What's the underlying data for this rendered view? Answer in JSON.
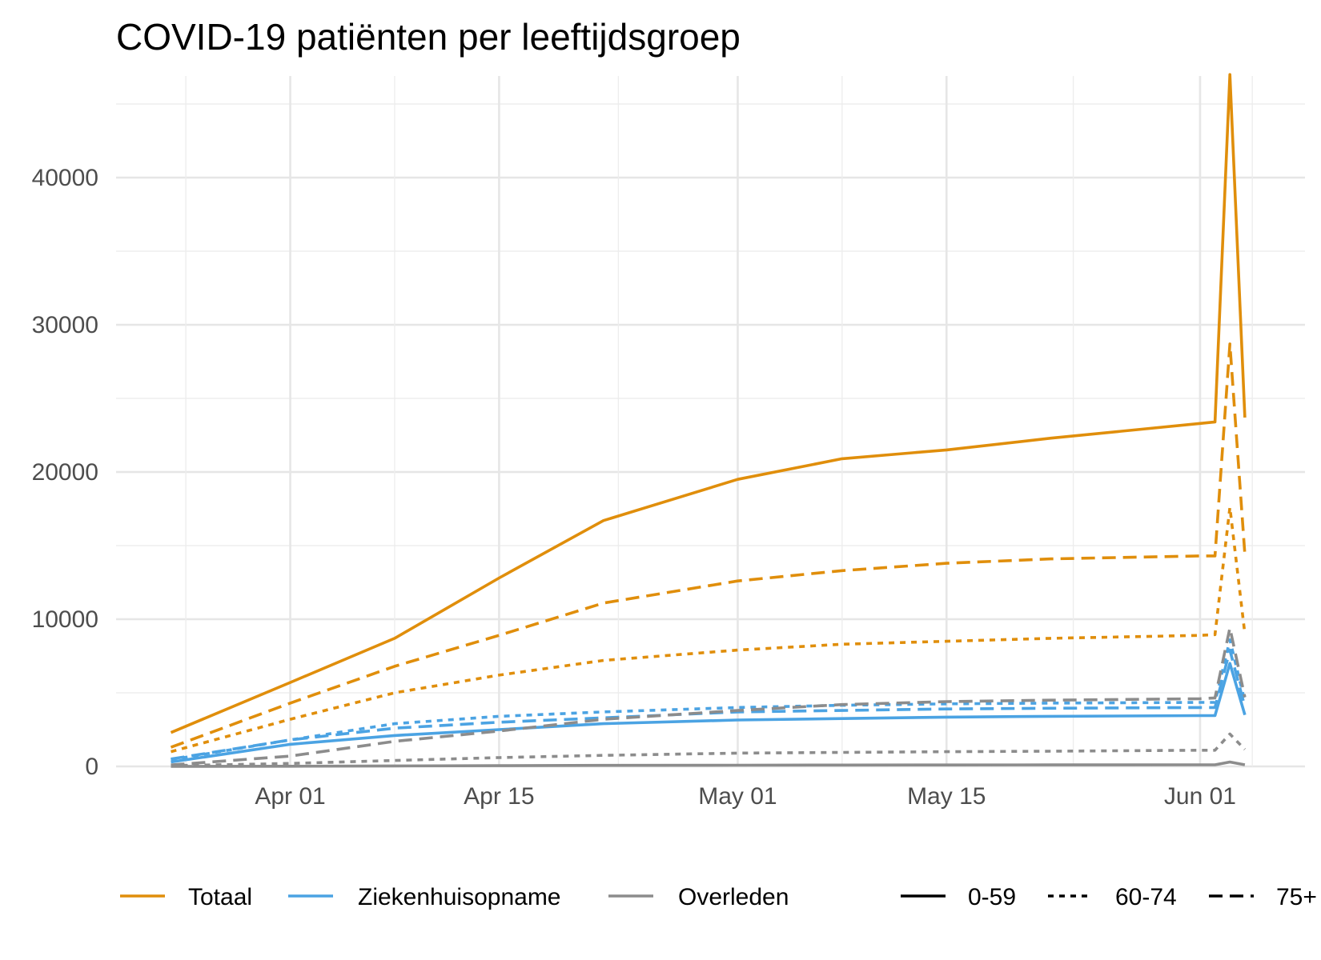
{
  "chart_data": {
    "type": "line",
    "title": "COVID-19 patiënten per leeftijdsgroep",
    "xlabel": "",
    "ylabel": "",
    "x_start": "2020-03-24",
    "x_ticks": [
      {
        "label": "Apr 01",
        "date": "2020-04-01"
      },
      {
        "label": "Apr 15",
        "date": "2020-04-15"
      },
      {
        "label": "May 01",
        "date": "2020-05-01"
      },
      {
        "label": "May 15",
        "date": "2020-05-15"
      },
      {
        "label": "Jun 01",
        "date": "2020-06-01"
      }
    ],
    "y_ticks": [
      0,
      10000,
      20000,
      30000,
      40000
    ],
    "ylim": [
      0,
      46800
    ],
    "grid": true,
    "legend_position": "bottom",
    "colors": {
      "Totaal": "#E08E0B",
      "Ziekenhuisopname": "#4BA3E3",
      "Overleden": "#8C8C8C"
    },
    "legend_colors": [
      {
        "label": "Totaal",
        "color": "#E08E0B"
      },
      {
        "label": "Ziekenhuisopname",
        "color": "#4BA3E3"
      },
      {
        "label": "Overleden",
        "color": "#8C8C8C"
      }
    ],
    "legend_linetypes": [
      {
        "label": "0-59",
        "dash": "solid"
      },
      {
        "label": "60-74",
        "dash": "dotted"
      },
      {
        "label": "75+",
        "dash": "dashed"
      }
    ],
    "series_dates": [
      "2020-03-24",
      "2020-04-01",
      "2020-04-08",
      "2020-04-15",
      "2020-04-22",
      "2020-05-01",
      "2020-05-08",
      "2020-05-15",
      "2020-05-22",
      "2020-06-01",
      "2020-06-02",
      "2020-06-03",
      "2020-06-04"
    ],
    "series": [
      {
        "category": "Totaal",
        "age": "0-59",
        "values": [
          2300,
          5700,
          8700,
          12800,
          16700,
          19500,
          20900,
          21500,
          22300,
          23300,
          23400,
          47000,
          23700
        ]
      },
      {
        "category": "Totaal",
        "age": "60-74",
        "values": [
          1000,
          3200,
          5000,
          6200,
          7200,
          7900,
          8300,
          8500,
          8700,
          8900,
          8950,
          17600,
          9000
        ]
      },
      {
        "category": "Totaal",
        "age": "75+",
        "values": [
          1300,
          4300,
          6800,
          8900,
          11100,
          12600,
          13300,
          13800,
          14100,
          14300,
          14300,
          28700,
          14400
        ]
      },
      {
        "category": "Ziekenhuisopname",
        "age": "0-59",
        "values": [
          300,
          1500,
          2100,
          2500,
          2900,
          3150,
          3250,
          3350,
          3400,
          3450,
          3450,
          7000,
          3500
        ]
      },
      {
        "category": "Ziekenhuisopname",
        "age": "60-74",
        "values": [
          450,
          1800,
          2900,
          3400,
          3700,
          4000,
          4150,
          4250,
          4300,
          4350,
          4350,
          8600,
          4400
        ]
      },
      {
        "category": "Ziekenhuisopname",
        "age": "75+",
        "values": [
          500,
          1800,
          2600,
          3000,
          3300,
          3700,
          3800,
          3900,
          3950,
          4000,
          4000,
          7900,
          4050
        ]
      },
      {
        "category": "Overleden",
        "age": "0-59",
        "values": [
          0,
          10,
          30,
          50,
          70,
          80,
          90,
          100,
          105,
          110,
          110,
          300,
          110
        ]
      },
      {
        "category": "Overleden",
        "age": "60-74",
        "values": [
          50,
          200,
          400,
          600,
          750,
          900,
          950,
          1000,
          1030,
          1100,
          1100,
          2200,
          1150
        ]
      },
      {
        "category": "Overleden",
        "age": "75+",
        "values": [
          100,
          700,
          1700,
          2400,
          3200,
          3800,
          4200,
          4400,
          4500,
          4600,
          4650,
          9400,
          4700
        ]
      }
    ]
  }
}
